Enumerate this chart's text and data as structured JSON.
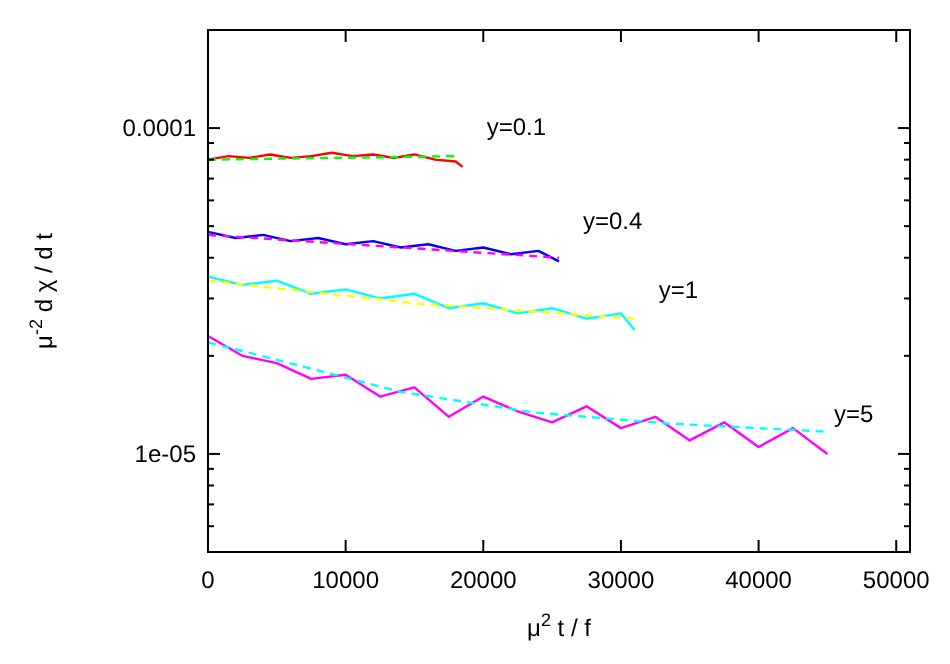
{
  "chart_data": {
    "type": "line",
    "xlabel": "μ$^{2}$ t / f",
    "ylabel": "μ$^{-2}$ d χ / d t",
    "log": "y",
    "grid": false,
    "xlim": [
      0,
      51000
    ],
    "xticks": [
      0,
      10000,
      20000,
      30000,
      40000,
      50000
    ],
    "ylim": [
      5e-06,
      0.0002
    ],
    "yticks": [
      {
        "value": 0.0001,
        "label": "0.0001"
      },
      {
        "value": 1e-05,
        "label": "1e-05"
      },
      {
        "value": 6e-06,
        "label": null
      },
      {
        "value": 7e-06,
        "label": null
      },
      {
        "value": 8e-06,
        "label": null
      },
      {
        "value": 9e-06,
        "label": null
      },
      {
        "value": 2e-05,
        "label": null
      },
      {
        "value": 3e-05,
        "label": null
      },
      {
        "value": 4e-05,
        "label": null
      },
      {
        "value": 5e-05,
        "label": null
      },
      {
        "value": 6e-05,
        "label": null
      },
      {
        "value": 7e-05,
        "label": null
      },
      {
        "value": 8e-05,
        "label": null
      },
      {
        "value": 9e-05,
        "label": null
      },
      {
        "value": 0.0002,
        "label": null
      }
    ],
    "series": [
      {
        "name": "y=0.1",
        "color": "#ff0000",
        "line_style": "solid",
        "x": [
          0,
          1500,
          3000,
          4500,
          6000,
          7500,
          9000,
          10500,
          12000,
          13500,
          15000,
          16500,
          18000,
          18500
        ],
        "values": [
          8e-05,
          8.2e-05,
          8.1e-05,
          8.3e-05,
          8.1e-05,
          8.2e-05,
          8.4e-05,
          8.2e-05,
          8.3e-05,
          8.1e-05,
          8.3e-05,
          8e-05,
          7.9e-05,
          7.6e-05
        ]
      },
      {
        "color": "#00ff00",
        "line_style": "dashed",
        "x": [
          0,
          18000
        ],
        "values": [
          8e-05,
          8.2e-05
        ]
      },
      {
        "name": "y=0.4",
        "color": "#0000ff",
        "line_style": "solid",
        "x": [
          0,
          2000,
          4000,
          6000,
          8000,
          10000,
          12000,
          14000,
          16000,
          18000,
          20000,
          22000,
          24000,
          25500
        ],
        "values": [
          4.8e-05,
          4.6e-05,
          4.7e-05,
          4.5e-05,
          4.6e-05,
          4.4e-05,
          4.5e-05,
          4.3e-05,
          4.4e-05,
          4.2e-05,
          4.3e-05,
          4.1e-05,
          4.2e-05,
          3.9e-05
        ]
      },
      {
        "color": "#ff00ff",
        "line_style": "dashed",
        "x": [
          0,
          25500
        ],
        "values": [
          4.7e-05,
          4e-05
        ]
      },
      {
        "name": "y=1",
        "color": "#00ffff",
        "line_style": "solid",
        "x": [
          0,
          2500,
          5000,
          7500,
          10000,
          12500,
          15000,
          17500,
          20000,
          22500,
          25000,
          27500,
          30000,
          31000
        ],
        "values": [
          3.5e-05,
          3.3e-05,
          3.4e-05,
          3.1e-05,
          3.2e-05,
          3e-05,
          3.1e-05,
          2.8e-05,
          2.9e-05,
          2.7e-05,
          2.8e-05,
          2.6e-05,
          2.7e-05,
          2.4e-05
        ]
      },
      {
        "color": "#ffff00",
        "line_style": "dashed",
        "x": [
          0,
          15000,
          31000
        ],
        "values": [
          3.4e-05,
          2.9e-05,
          2.6e-05
        ]
      },
      {
        "name": "y=5",
        "color": "#ff00ff",
        "line_style": "solid",
        "x": [
          0,
          2500,
          5000,
          7500,
          10000,
          12500,
          15000,
          17500,
          20000,
          22500,
          25000,
          27500,
          30000,
          32500,
          35000,
          37500,
          40000,
          42500,
          45000
        ],
        "values": [
          2.3e-05,
          2e-05,
          1.9e-05,
          1.7e-05,
          1.75e-05,
          1.5e-05,
          1.6e-05,
          1.3e-05,
          1.5e-05,
          1.35e-05,
          1.25e-05,
          1.4e-05,
          1.2e-05,
          1.3e-05,
          1.1e-05,
          1.25e-05,
          1.05e-05,
          1.2e-05,
          1e-05
        ]
      },
      {
        "color": "#00ffff",
        "line_style": "dashed",
        "x": [
          0,
          7000,
          14000,
          23700,
          33400,
          45000
        ],
        "values": [
          2.2e-05,
          1.85e-05,
          1.55e-05,
          1.34e-05,
          1.24e-05,
          1.17e-05
        ]
      }
    ]
  }
}
